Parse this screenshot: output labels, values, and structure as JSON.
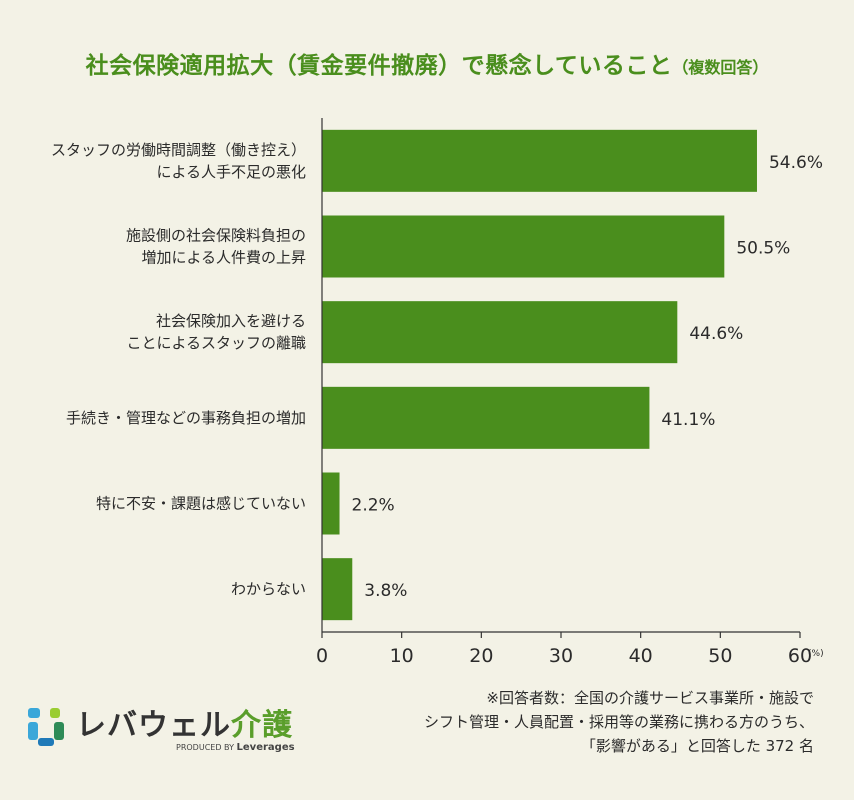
{
  "chart_data": {
    "type": "bar",
    "orientation": "horizontal",
    "title": "社会保険適用拡大（賃金要件撤廃）で懸念していること",
    "title_note": "（複数回答）",
    "categories": [
      [
        "スタッフの労働時間調整（働き控え）",
        "による人手不足の悪化"
      ],
      [
        "施設側の社会保険料負担の",
        "増加による人件費の上昇"
      ],
      [
        "社会保険加入を避ける",
        "ことによるスタッフの離職"
      ],
      [
        "手続き・管理などの事務負担の増加"
      ],
      [
        "特に不安・課題は感じていない"
      ],
      [
        "わからない"
      ]
    ],
    "values": [
      54.6,
      50.5,
      44.6,
      41.1,
      2.2,
      3.8
    ],
    "value_labels": [
      "54.6%",
      "50.5%",
      "44.6%",
      "41.1%",
      "2.2%",
      "3.8%"
    ],
    "xlim": [
      0,
      60
    ],
    "xticks": [
      0,
      10,
      20,
      30,
      40,
      50,
      60
    ],
    "x_unit": "(%)",
    "grid": false,
    "bar_color": "#4a8e1d"
  },
  "logo": {
    "name_main": "レバウェル",
    "name_accent": "介護",
    "produced_by": "PRODUCED BY",
    "company": "Leverages"
  },
  "footnote": [
    "※回答者数：全国の介護サービス事業所・施設で",
    "シフト管理・人員配置・採用等の業務に携わる方のうち、",
    "「影響がある」と回答した 372 名"
  ]
}
